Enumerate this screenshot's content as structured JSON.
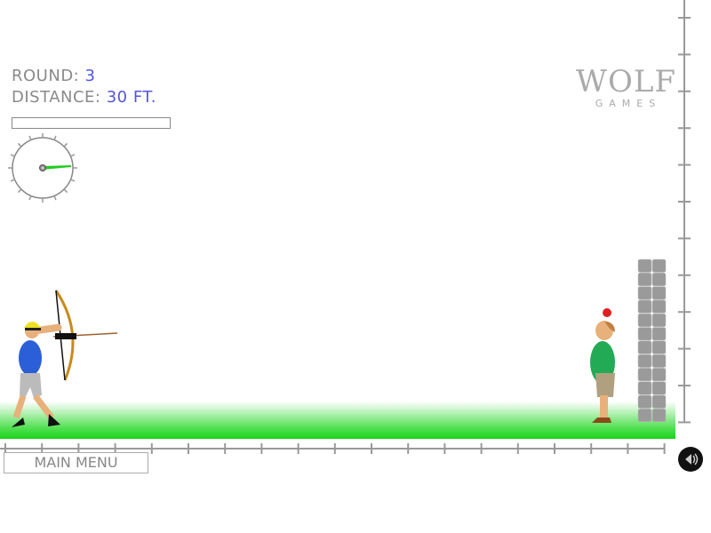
{
  "hud": {
    "round_label": "ROUND:",
    "round_value": "3",
    "distance_label": "DISTANCE:",
    "distance_value": "30 FT."
  },
  "power": {
    "fill_percent": 0
  },
  "aim_gauge": {
    "needle_color": "#22cc22"
  },
  "main_menu_label": "MAIN MENU",
  "logo": {
    "word": "WOLF",
    "sub": "GAMES"
  },
  "sound_icon": "speaker-icon",
  "colors": {
    "grass": "#22dd22",
    "hud_value": "#5555dd",
    "hud_label": "#8a8a8a"
  }
}
